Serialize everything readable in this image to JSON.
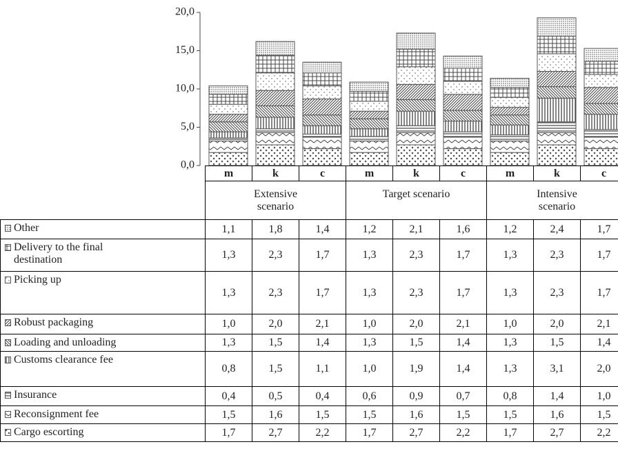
{
  "chart_data": {
    "type": "bar",
    "stacked": true,
    "categories": [
      "m",
      "k",
      "c",
      "m",
      "k",
      "c",
      "m",
      "k",
      "c"
    ],
    "groups": [
      "Extensive scenario",
      "Target scenario",
      "Intensive scenario"
    ],
    "ylim": [
      0,
      20
    ],
    "yticks": [
      {
        "value": 0,
        "label": "0,0"
      },
      {
        "value": 5,
        "label": "5,0"
      },
      {
        "value": 10,
        "label": "10,0"
      },
      {
        "value": 15,
        "label": "15,0"
      },
      {
        "value": 20,
        "label": "20,0"
      }
    ],
    "series": [
      {
        "name": "Other",
        "color": "#444444",
        "values": [
          1.1,
          1.8,
          1.4,
          1.2,
          2.1,
          1.6,
          1.2,
          2.4,
          1.7
        ],
        "value_labels": [
          "1,1",
          "1,8",
          "1,4",
          "1,2",
          "2,1",
          "1,6",
          "1,2",
          "2,4",
          "1,7"
        ]
      },
      {
        "name": "Delivery to the final destination",
        "color": "#444444",
        "values": [
          1.3,
          2.3,
          1.7,
          1.3,
          2.3,
          1.7,
          1.3,
          2.3,
          1.7
        ],
        "value_labels": [
          "1,3",
          "2,3",
          "1,7",
          "1,3",
          "2,3",
          "1,7",
          "1,3",
          "2,3",
          "1,7"
        ]
      },
      {
        "name": "Picking up",
        "color": "#444444",
        "values": [
          1.3,
          2.3,
          1.7,
          1.3,
          2.3,
          1.7,
          1.3,
          2.3,
          1.7
        ],
        "value_labels": [
          "1,3",
          "2,3",
          "1,7",
          "1,3",
          "2,3",
          "1,7",
          "1,3",
          "2,3",
          "1,7"
        ]
      },
      {
        "name": "Robust packaging",
        "color": "#444444",
        "values": [
          1.0,
          2.0,
          2.1,
          1.0,
          2.0,
          2.1,
          1.0,
          2.0,
          2.1
        ],
        "value_labels": [
          "1,0",
          "2,0",
          "2,1",
          "1,0",
          "2,0",
          "2,1",
          "1,0",
          "2,0",
          "2,1"
        ]
      },
      {
        "name": "Loading and unloading",
        "color": "#444444",
        "values": [
          1.3,
          1.5,
          1.4,
          1.3,
          1.5,
          1.4,
          1.3,
          1.5,
          1.4
        ],
        "value_labels": [
          "1,3",
          "1,5",
          "1,4",
          "1,3",
          "1,5",
          "1,4",
          "1,3",
          "1,5",
          "1,4"
        ]
      },
      {
        "name": "Customs clearance fee",
        "color": "#444444",
        "values": [
          0.8,
          1.5,
          1.1,
          1.0,
          1.9,
          1.4,
          1.3,
          3.1,
          2.0
        ],
        "value_labels": [
          "0,8",
          "1,5",
          "1,1",
          "1,0",
          "1,9",
          "1,4",
          "1,3",
          "3,1",
          "2,0"
        ]
      },
      {
        "name": "Insurance",
        "color": "#444444",
        "values": [
          0.4,
          0.5,
          0.4,
          0.6,
          0.9,
          0.7,
          0.8,
          1.4,
          1.0
        ],
        "value_labels": [
          "0,4",
          "0,5",
          "0,4",
          "0,6",
          "0,9",
          "0,7",
          "0,8",
          "1,4",
          "1,0"
        ]
      },
      {
        "name": "Reconsignment fee",
        "color": "#444444",
        "values": [
          1.5,
          1.6,
          1.5,
          1.5,
          1.6,
          1.5,
          1.5,
          1.6,
          1.5
        ],
        "value_labels": [
          "1,5",
          "1,6",
          "1,5",
          "1,5",
          "1,6",
          "1,5",
          "1,5",
          "1,6",
          "1,5"
        ]
      },
      {
        "name": "Cargo escorting",
        "color": "#444444",
        "values": [
          1.7,
          2.7,
          2.2,
          1.7,
          2.7,
          2.2,
          1.7,
          2.7,
          2.2
        ],
        "value_labels": [
          "1,7",
          "2,7",
          "2,2",
          "1,7",
          "2,7",
          "2,2",
          "1,7",
          "2,7",
          "2,2"
        ]
      }
    ]
  }
}
